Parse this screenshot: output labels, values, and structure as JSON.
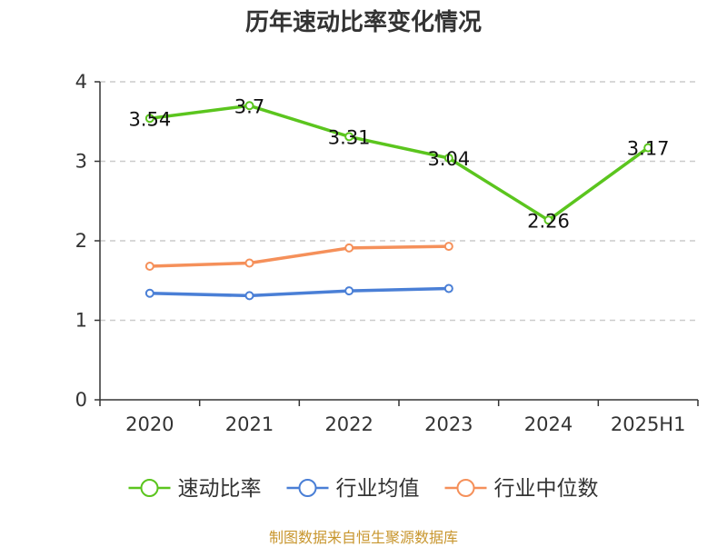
{
  "chart_data": {
    "type": "line",
    "title": "历年速动比率变化情况",
    "categories": [
      "2020",
      "2021",
      "2022",
      "2023",
      "2024",
      "2025H1"
    ],
    "ylim": [
      0,
      4
    ],
    "yticks": [
      0,
      1,
      2,
      3,
      4
    ],
    "grid": "horizontal dashed",
    "legend_position": "bottom",
    "series": [
      {
        "name": "速动比率",
        "color": "#5bc51e",
        "values": [
          3.54,
          3.7,
          3.31,
          3.04,
          2.26,
          3.17
        ],
        "data_labels": [
          "3.54",
          "3.7",
          "3.31",
          "3.04",
          "2.26",
          "3.17"
        ]
      },
      {
        "name": "行业均值",
        "color": "#4a7fd6",
        "values": [
          1.34,
          1.31,
          1.37,
          1.4,
          null,
          null
        ]
      },
      {
        "name": "行业中位数",
        "color": "#f5905a",
        "values": [
          1.68,
          1.72,
          1.91,
          1.93,
          null,
          null
        ]
      }
    ]
  },
  "source_note": "制图数据来自恒生聚源数据库"
}
